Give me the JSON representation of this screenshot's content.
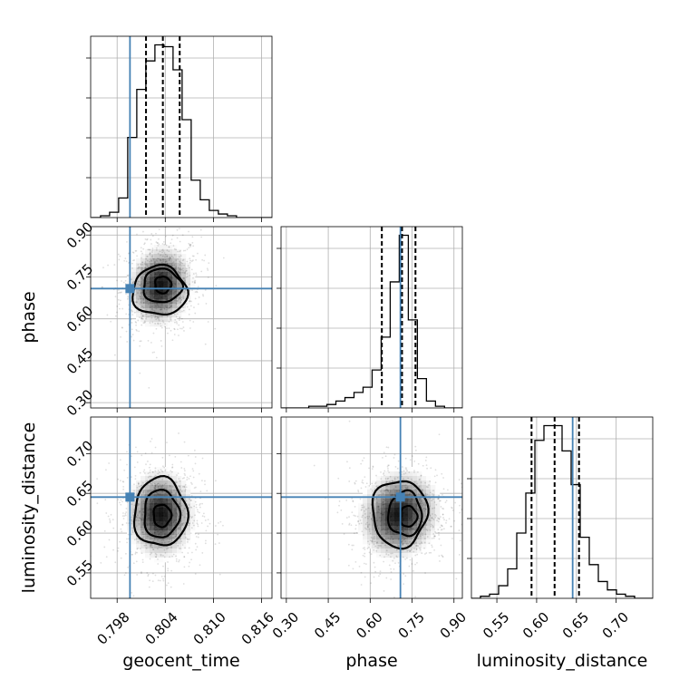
{
  "chart_data": {
    "type": "corner",
    "parameters": [
      "geocent_time",
      "phase",
      "luminosity_distance"
    ],
    "truths": {
      "geocent_time": 0.7996,
      "phase": 0.7083,
      "luminosity_distance": 0.6453
    },
    "colors": {
      "truth": "#4682b4",
      "hist": "#000000",
      "grid": "#b0b0b0"
    },
    "grid": true,
    "ranges": {
      "geocent_time": [
        0.7947,
        0.8173
      ],
      "phase": [
        0.281,
        0.93
      ],
      "luminosity_distance": [
        0.518,
        0.746
      ]
    },
    "ticks": {
      "geocent_time": {
        "values": [
          0.798,
          0.804,
          0.81,
          0.816
        ],
        "labels": [
          "0.798",
          "0.804",
          "0.810",
          "0.816"
        ]
      },
      "phase": {
        "values": [
          0.3,
          0.45,
          0.6,
          0.75,
          0.9
        ],
        "labels": [
          "0.30",
          "0.45",
          "0.60",
          "0.75",
          "0.90"
        ]
      },
      "luminosity_distance": {
        "values": [
          0.55,
          0.6,
          0.65,
          0.7
        ],
        "labels": [
          "0.55",
          "0.60",
          "0.65",
          "0.70"
        ]
      }
    },
    "quantiles": {
      "geocent_time": [
        0.8016,
        0.8037,
        0.8058
      ],
      "phase": [
        0.6418,
        0.7141,
        0.7622
      ],
      "luminosity_distance": [
        0.5936,
        0.6226,
        0.6533
      ]
    },
    "histograms": {
      "geocent_time": {
        "x_start": 0.7948,
        "bin_width": 0.00113,
        "counts": [
          0,
          1,
          3,
          11,
          45,
          72,
          88,
          97,
          96,
          83,
          55,
          21,
          10,
          4,
          2,
          1,
          0,
          0,
          0,
          0
        ]
      },
      "phase": {
        "x_start": 0.283,
        "bin_width": 0.0324,
        "counts": [
          0,
          0,
          0,
          1,
          1,
          2,
          4,
          6,
          9,
          12,
          22,
          41,
          73,
          100,
          51,
          17,
          4,
          1,
          0,
          0
        ]
      },
      "luminosity_distance": {
        "x_start": 0.518,
        "bin_width": 0.0114,
        "counts": [
          0,
          1,
          2,
          6,
          14,
          31,
          50,
          75,
          82,
          82,
          70,
          54,
          29,
          16,
          8,
          4,
          2,
          1,
          0,
          0
        ]
      }
    },
    "pair_panels": [
      {
        "x": "geocent_time",
        "y": "phase",
        "center": [
          0.8034,
          0.7183
        ],
        "sd": [
          0.002,
          0.072
        ],
        "rho": 0.1,
        "levels": [
          [
            0.8037,
            0.722,
            0.001,
            0.03
          ],
          [
            0.8036,
            0.718,
            0.0024,
            0.06
          ],
          [
            0.8033,
            0.7,
            0.0034,
            0.088
          ]
        ]
      },
      {
        "x": "geocent_time",
        "y": "luminosity_distance",
        "center": [
          0.8034,
          0.6237
        ],
        "sd": [
          0.0021,
          0.028
        ],
        "rho": 0.0,
        "levels": [
          [
            0.8036,
            0.622,
            0.0011,
            0.014
          ],
          [
            0.8035,
            0.624,
            0.0022,
            0.03
          ],
          [
            0.8034,
            0.626,
            0.0033,
            0.043
          ]
        ]
      },
      {
        "x": "phase",
        "y": "luminosity_distance",
        "center": [
          0.7045,
          0.6235
        ],
        "sd": [
          0.072,
          0.028
        ],
        "rho": 0.1,
        "levels": [
          [
            0.737,
            0.621,
            0.03,
            0.013
          ],
          [
            0.725,
            0.624,
            0.06,
            0.028
          ],
          [
            0.705,
            0.625,
            0.098,
            0.042
          ]
        ]
      }
    ]
  }
}
